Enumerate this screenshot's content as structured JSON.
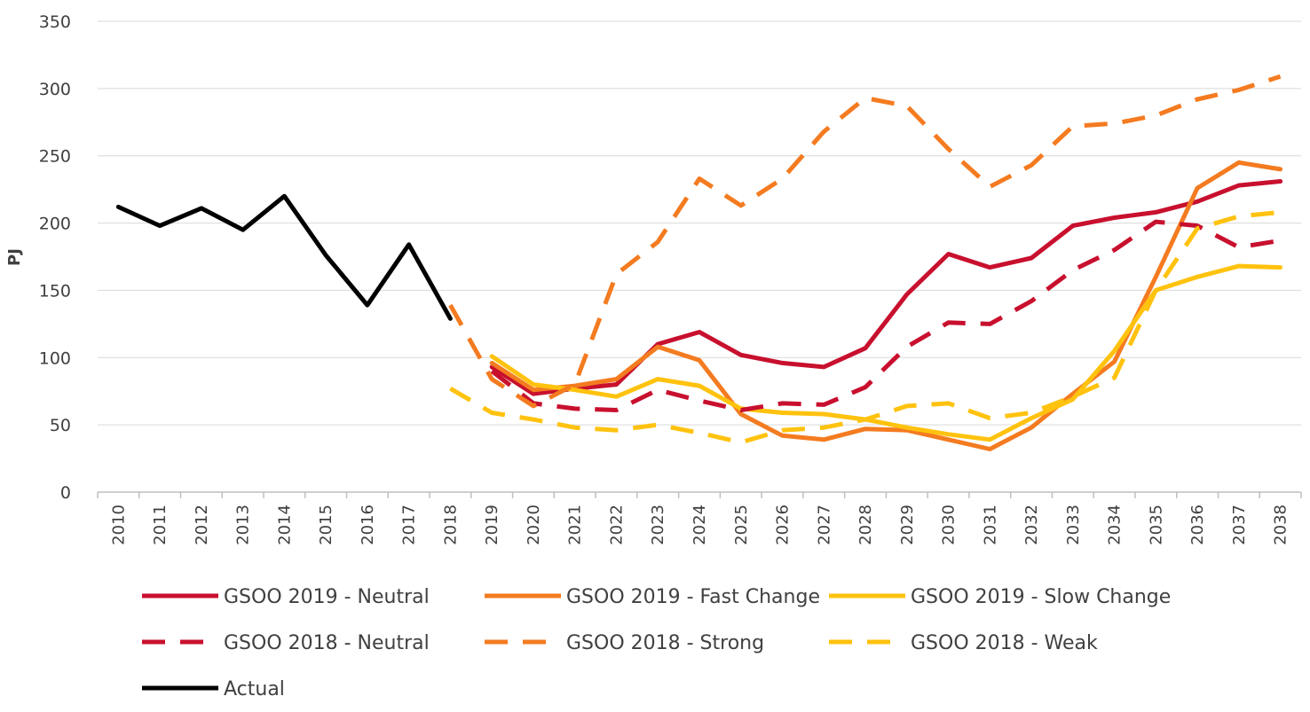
{
  "chart_data": {
    "type": "line",
    "title": "",
    "xlabel": "",
    "ylabel": "PJ",
    "ylim": [
      0,
      350
    ],
    "yticks": [
      0,
      50,
      100,
      150,
      200,
      250,
      300,
      350
    ],
    "grid": true,
    "legend_position": "bottom",
    "categories": [
      "2010",
      "2011",
      "2012",
      "2013",
      "2014",
      "2015",
      "2016",
      "2017",
      "2018",
      "2019",
      "2020",
      "2021",
      "2022",
      "2023",
      "2024",
      "2025",
      "2026",
      "2027",
      "2028",
      "2029",
      "2030",
      "2031",
      "2032",
      "2033",
      "2034",
      "2035",
      "2036",
      "2037",
      "2038"
    ],
    "series": [
      {
        "name": "GSOO 2019 - Neutral",
        "color": "#C8102E",
        "dash": "solid",
        "values": [
          null,
          null,
          null,
          null,
          null,
          null,
          null,
          null,
          null,
          93,
          73,
          77,
          80,
          110,
          119,
          102,
          96,
          93,
          107,
          147,
          177,
          167,
          174,
          198,
          204,
          208,
          216,
          228,
          231
        ]
      },
      {
        "name": "GSOO 2019 - Fast Change",
        "color": "#F47B20",
        "dash": "solid",
        "values": [
          null,
          null,
          null,
          null,
          null,
          null,
          null,
          null,
          null,
          96,
          76,
          79,
          84,
          108,
          98,
          58,
          42,
          39,
          47,
          46,
          39,
          32,
          48,
          73,
          97,
          160,
          226,
          245,
          240
        ]
      },
      {
        "name": "GSOO 2019 - Slow Change",
        "color": "#FFC20E",
        "dash": "solid",
        "values": [
          null,
          null,
          null,
          null,
          null,
          null,
          null,
          null,
          null,
          101,
          80,
          76,
          71,
          84,
          79,
          62,
          59,
          58,
          54,
          48,
          43,
          39,
          55,
          69,
          105,
          150,
          160,
          168,
          167
        ]
      },
      {
        "name": "GSOO 2018 - Neutral",
        "color": "#C8102E",
        "dash": "dashed",
        "values": [
          null,
          null,
          null,
          null,
          null,
          null,
          null,
          null,
          null,
          90,
          66,
          62,
          61,
          76,
          68,
          61,
          66,
          65,
          78,
          108,
          126,
          125,
          142,
          165,
          180,
          201,
          198,
          182,
          187
        ]
      },
      {
        "name": "GSOO 2018 - Strong",
        "color": "#F47B20",
        "dash": "dashed",
        "values": [
          null,
          null,
          null,
          null,
          null,
          null,
          null,
          null,
          139,
          84,
          64,
          80,
          162,
          186,
          233,
          213,
          233,
          268,
          293,
          287,
          255,
          227,
          243,
          272,
          274,
          280,
          292,
          299,
          309
        ]
      },
      {
        "name": "GSOO 2018 - Weak",
        "color": "#FFC20E",
        "dash": "dashed",
        "values": [
          null,
          null,
          null,
          null,
          null,
          null,
          null,
          null,
          77,
          59,
          54,
          48,
          46,
          50,
          44,
          37,
          46,
          48,
          54,
          64,
          66,
          55,
          59,
          71,
          85,
          150,
          196,
          205,
          208
        ]
      },
      {
        "name": "Actual",
        "color": "#000000",
        "dash": "solid",
        "values": [
          212,
          198,
          211,
          195,
          220,
          176,
          139,
          184,
          129,
          null,
          null,
          null,
          null,
          null,
          null,
          null,
          null,
          null,
          null,
          null,
          null,
          null,
          null,
          null,
          null,
          null,
          null,
          null,
          null
        ]
      }
    ]
  }
}
